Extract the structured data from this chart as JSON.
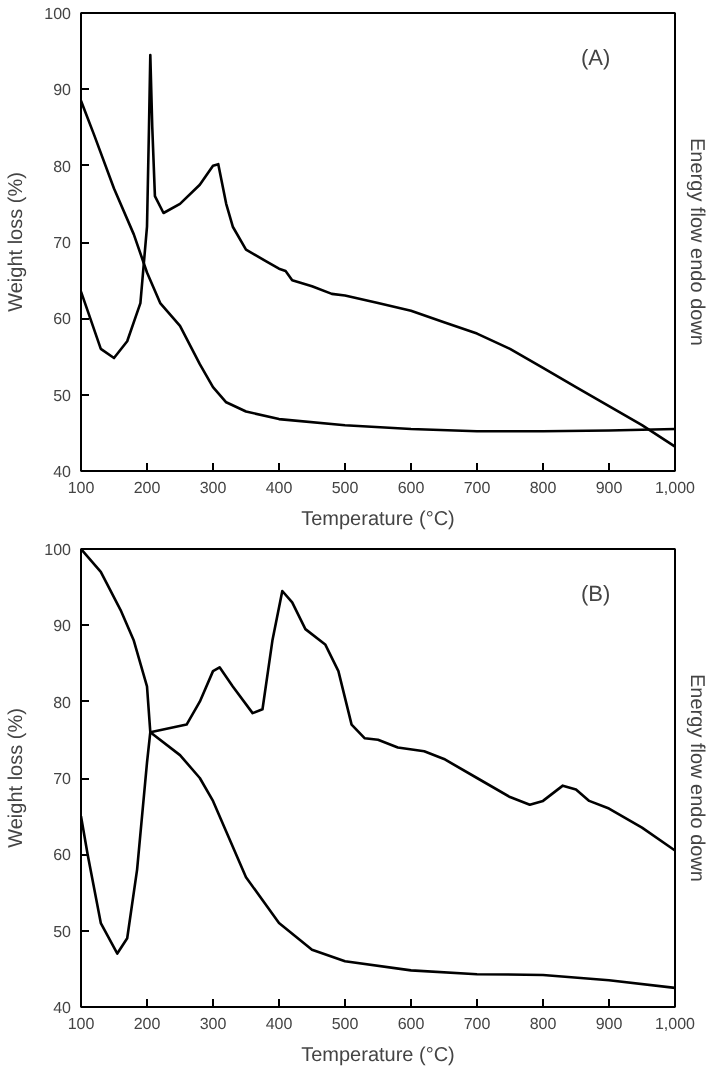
{
  "chart_data": [
    {
      "type": "line",
      "xlabel": "Temperature (°C)",
      "ylabel": "Weight loss (%)",
      "y2label": "Energy flow endo down",
      "annotations": [
        "(A)"
      ],
      "xlim": [
        100,
        1000
      ],
      "ylim": [
        40,
        100
      ],
      "xticks": [
        100,
        200,
        300,
        400,
        500,
        600,
        700,
        800,
        900,
        {
          "value": 1000,
          "label": "1,000"
        }
      ],
      "yticks": [
        40,
        50,
        60,
        70,
        80,
        90,
        100
      ],
      "grid": false,
      "series": [
        {
          "color": "#000000",
          "x": [
            100,
            120,
            150,
            180,
            200,
            220,
            250,
            280,
            300,
            320,
            350,
            400,
            500,
            600,
            700,
            800,
            900,
            1000
          ],
          "values": [
            88.5,
            84,
            77,
            71,
            66,
            62,
            59,
            54,
            51,
            49,
            47.8,
            46.8,
            46,
            45.5,
            45.2,
            45.2,
            45.3,
            45.5
          ]
        },
        {
          "color": "#000000",
          "x": [
            100,
            110,
            130,
            150,
            170,
            190,
            200,
            203,
            205,
            208,
            212,
            225,
            250,
            280,
            300,
            308,
            320,
            330,
            350,
            380,
            400,
            410,
            420,
            450,
            480,
            500,
            550,
            600,
            650,
            700,
            750,
            800,
            850,
            900,
            950,
            1000
          ],
          "values": [
            63.5,
            61,
            56,
            54.8,
            57,
            62,
            72,
            85,
            94.5,
            85,
            76,
            73.8,
            75,
            77.5,
            80,
            80.2,
            75,
            72,
            69,
            67.5,
            66.5,
            66.2,
            65,
            64.2,
            63.2,
            63,
            62,
            61,
            59.5,
            58,
            56,
            53.5,
            51,
            48.5,
            46,
            43.2
          ]
        }
      ]
    },
    {
      "type": "line",
      "xlabel": "Temperature (°C)",
      "ylabel": "Weight loss (%)",
      "y2label": "Energy flow endo down",
      "annotations": [
        "(B)"
      ],
      "xlim": [
        100,
        1000
      ],
      "ylim": [
        40,
        100
      ],
      "xticks": [
        100,
        200,
        300,
        400,
        500,
        600,
        700,
        800,
        900,
        {
          "value": 1000,
          "label": "1,000"
        }
      ],
      "yticks": [
        40,
        50,
        60,
        70,
        80,
        90,
        100
      ],
      "grid": false,
      "series": [
        {
          "color": "#000000",
          "x": [
            100,
            130,
            160,
            180,
            200,
            205,
            250,
            280,
            300,
            320,
            350,
            400,
            450,
            500,
            600,
            700,
            800,
            900,
            1000
          ],
          "values": [
            100,
            97,
            92,
            88,
            82,
            76,
            73,
            70,
            67,
            63,
            57,
            51,
            47.5,
            46,
            44.8,
            44.3,
            44.2,
            43.5,
            42.5
          ]
        },
        {
          "color": "#000000",
          "x": [
            100,
            110,
            130,
            155,
            170,
            185,
            200,
            205,
            260,
            280,
            300,
            310,
            330,
            360,
            375,
            390,
            405,
            420,
            440,
            470,
            490,
            510,
            530,
            550,
            580,
            620,
            650,
            700,
            750,
            780,
            800,
            830,
            850,
            870,
            900,
            950,
            1000
          ],
          "values": [
            65,
            60,
            51,
            47,
            49,
            58,
            72,
            76,
            77,
            80,
            84,
            84.5,
            82,
            78.5,
            79,
            88,
            94.5,
            93,
            89.5,
            87.5,
            84,
            77,
            75.2,
            75,
            74,
            73.5,
            72.5,
            70,
            67.5,
            66.5,
            67,
            69,
            68.5,
            67,
            66,
            63.5,
            60.5
          ]
        }
      ]
    }
  ]
}
